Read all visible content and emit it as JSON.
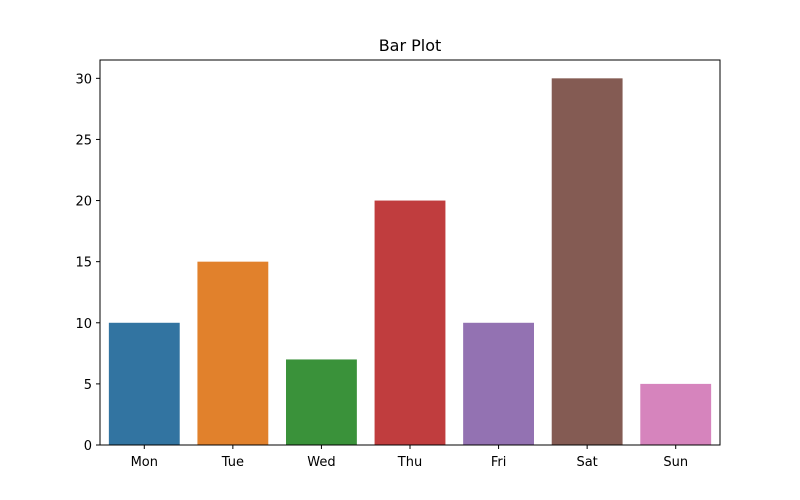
{
  "chart_data": {
    "type": "bar",
    "title": "Bar Plot",
    "xlabel": "",
    "ylabel": "",
    "categories": [
      "Mon",
      "Tue",
      "Wed",
      "Thu",
      "Fri",
      "Sat",
      "Sun"
    ],
    "values": [
      10,
      15,
      7,
      20,
      10,
      30,
      5
    ],
    "colors": [
      "#3274a1",
      "#e1812c",
      "#3a923a",
      "#c03d3e",
      "#9372b2",
      "#845b53",
      "#d684bd"
    ],
    "ylim": [
      0,
      31.5
    ],
    "yticks": [
      0,
      5,
      10,
      15,
      20,
      25,
      30
    ],
    "grid": false,
    "legend": "none"
  }
}
